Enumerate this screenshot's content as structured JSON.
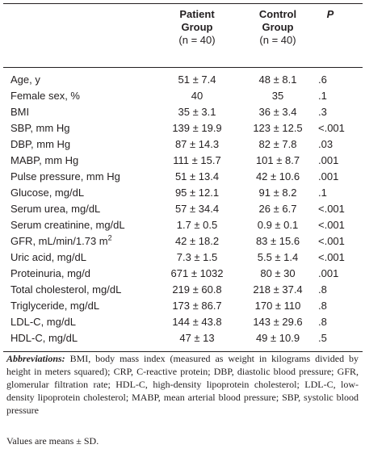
{
  "table": {
    "headers": {
      "patient": [
        "Patient",
        "Group",
        "(n = 40)"
      ],
      "control": [
        "Control",
        "Group",
        "(n = 40)"
      ],
      "p": "P"
    },
    "rows": [
      {
        "label": "Age, y",
        "patient": "51 ± 7.4",
        "control": "48 ± 8.1",
        "p": ".6"
      },
      {
        "label": "Female sex, %",
        "patient": "40",
        "control": "35",
        "p": ".1"
      },
      {
        "label": "BMI",
        "patient": "35 ± 3.1",
        "control": "36 ± 3.4",
        "p": ".3"
      },
      {
        "label": "SBP, mm Hg",
        "patient": "139 ± 19.9",
        "control": "123 ± 12.5",
        "p": "<.001"
      },
      {
        "label": "DBP, mm Hg",
        "patient": "87 ± 14.3",
        "control": "82 ± 7.8",
        "p": ".03"
      },
      {
        "label": "MABP, mm Hg",
        "patient": "111 ± 15.7",
        "control": "101 ± 8.7",
        "p": ".001"
      },
      {
        "label": "Pulse pressure, mm Hg",
        "patient": "51 ± 13.4",
        "control": "42 ± 10.6",
        "p": ".001"
      },
      {
        "label": "Glucose, mg/dL",
        "patient": "95 ± 12.1",
        "control": "91 ± 8.2",
        "p": ".1"
      },
      {
        "label": "Serum urea, mg/dL",
        "patient": "57 ± 34.4",
        "control": "26 ± 6.7",
        "p": "<.001"
      },
      {
        "label": "Serum creatinine, mg/dL",
        "patient": "1.7 ± 0.5",
        "control": "0.9 ± 0.1",
        "p": "<.001"
      },
      {
        "label": "GFR, mL/min/1.73 m",
        "label_sup": "2",
        "patient": "42 ± 18.2",
        "control": "83 ± 15.6",
        "p": "<.001"
      },
      {
        "label": "Uric acid, mg/dL",
        "patient": "7.3 ± 1.5",
        "control": "5.5 ± 1.4",
        "p": "<.001"
      },
      {
        "label": "Proteinuria, mg/d",
        "patient": "671 ± 1032",
        "control": "80 ± 30",
        "p": ".001"
      },
      {
        "label": "Total cholesterol, mg/dL",
        "patient": "219 ± 60.8",
        "control": "218 ± 37.4",
        "p": ".8"
      },
      {
        "label": "Triglyceride, mg/dL",
        "patient": "173 ± 86.7",
        "control": "170 ± 110",
        "p": ".8"
      },
      {
        "label": "LDL-C, mg/dL",
        "patient": "144 ± 43.8",
        "control": "143 ± 29.6",
        "p": ".8"
      },
      {
        "label": "HDL-C, mg/dL",
        "patient": "47 ± 13",
        "control": "49 ± 10.9",
        "p": ".5"
      }
    ]
  },
  "footnote": {
    "abbr_head": "Abbreviations:",
    "abbr_text": " BMI, body mass index (measured as weight in kilograms divided by height in meters squared); CRP, C-reactive protein; DBP, diastolic blood pressure; GFR, glomerular filtration rate; HDL-C, high-density lipoprotein cholesterol; LDL-C, low-density lipoprotein cholesterol; MABP, mean arterial blood pressure; SBP, systolic blood pressure",
    "values_note": "Values are means ± SD."
  }
}
